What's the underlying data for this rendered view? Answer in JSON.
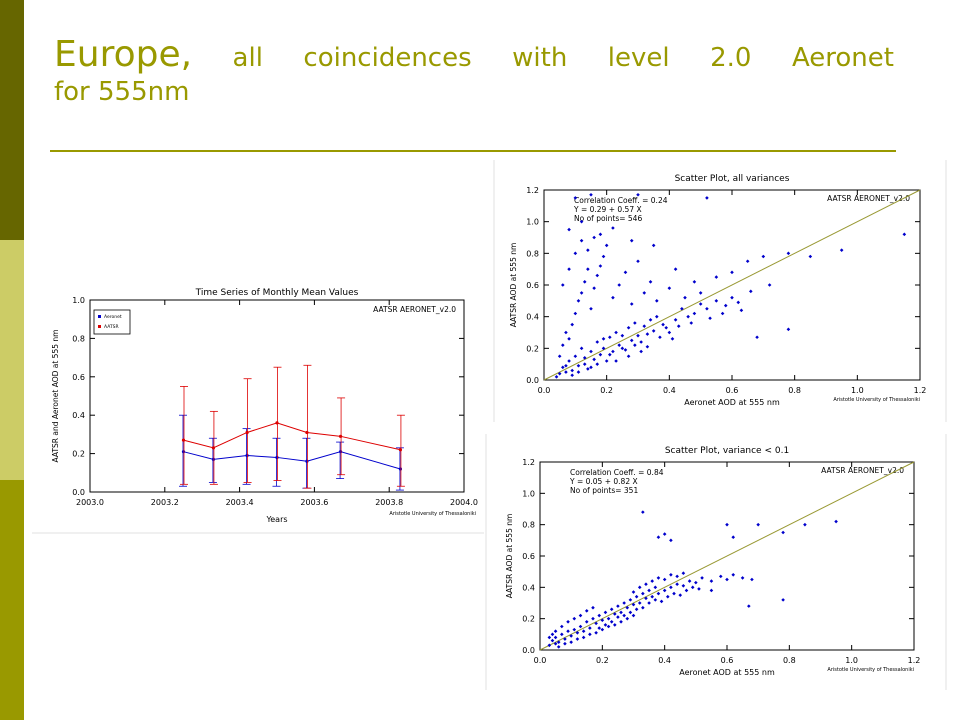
{
  "slide": {
    "title_line1_words": [
      "Europe,",
      "all",
      "coincidences",
      "with",
      "level",
      "2.0",
      "Aeronet"
    ],
    "title_line2": "for 555nm",
    "accent_color": "#999900",
    "sidebar_colors": [
      "#666600",
      "#cccc66",
      "#999900"
    ]
  },
  "chart_data": [
    {
      "type": "line",
      "title": "Time Series of Monthly Mean Values",
      "annotation": "AATSR AERONET_v2.0",
      "credit": "Aristotle University of Thessaloniki",
      "xlabel": "Years",
      "ylabel": "AATSR and Aeronet AOD at 555 nm",
      "xlim": [
        2003.0,
        2004.0
      ],
      "ylim": [
        0.0,
        1.0
      ],
      "xticks": [
        "2003.0",
        "2003.2",
        "2003.4",
        "2003.6",
        "2003.8",
        "2004.0"
      ],
      "yticks": [
        "0.0",
        "0.2",
        "0.4",
        "0.6",
        "0.8",
        "1.0"
      ],
      "legend_position": "top-left",
      "x": [
        2003.25,
        2003.33,
        2003.42,
        2003.5,
        2003.58,
        2003.67,
        2003.83
      ],
      "series": [
        {
          "name": "Aeronet",
          "color": "#0000cc",
          "values": [
            0.21,
            0.17,
            0.19,
            0.18,
            0.16,
            0.21,
            0.12
          ],
          "err_low": [
            0.03,
            0.05,
            0.04,
            0.03,
            0.02,
            0.07,
            0.01
          ],
          "err_high": [
            0.4,
            0.28,
            0.33,
            0.28,
            0.28,
            0.26,
            0.23
          ]
        },
        {
          "name": "AATSR",
          "color": "#dd0000",
          "values": [
            0.27,
            0.23,
            0.31,
            0.36,
            0.31,
            0.29,
            0.22
          ],
          "err_low": [
            0.04,
            0.04,
            0.05,
            0.06,
            0.02,
            0.09,
            0.03
          ],
          "err_high": [
            0.55,
            0.42,
            0.59,
            0.65,
            0.66,
            0.49,
            0.4
          ]
        }
      ]
    },
    {
      "type": "scatter",
      "title": "Scatter Plot, all variances",
      "annotation": "AATSR AERONET_v2.0",
      "credit": "Aristotle University of Thessaloniki",
      "stats": [
        "Correlation Coeff. = 0.24",
        "Y = 0.29 + 0.57 X",
        "No of points= 546"
      ],
      "xlabel": "Aeronet AOD at 555 nm",
      "ylabel": "AATSR AOD at 555 nm",
      "xlim": [
        0.0,
        1.2
      ],
      "ylim": [
        0.0,
        1.2
      ],
      "xticks": [
        "0.0",
        "0.2",
        "0.4",
        "0.6",
        "0.8",
        "1.0",
        "1.2"
      ],
      "yticks": [
        "0.0",
        "0.2",
        "0.4",
        "0.6",
        "0.8",
        "1.0",
        "1.2"
      ],
      "point_color": "#0000cc",
      "line_color": "#999933",
      "points": [
        [
          0.04,
          0.02
        ],
        [
          0.05,
          0.04
        ],
        [
          0.06,
          0.08
        ],
        [
          0.07,
          0.05
        ],
        [
          0.08,
          0.12
        ],
        [
          0.09,
          0.06
        ],
        [
          0.1,
          0.15
        ],
        [
          0.11,
          0.09
        ],
        [
          0.12,
          0.2
        ],
        [
          0.13,
          0.1
        ],
        [
          0.14,
          0.07
        ],
        [
          0.15,
          0.18
        ],
        [
          0.16,
          0.13
        ],
        [
          0.17,
          0.24
        ],
        [
          0.18,
          0.16
        ],
        [
          0.19,
          0.2
        ],
        [
          0.2,
          0.12
        ],
        [
          0.21,
          0.27
        ],
        [
          0.22,
          0.18
        ],
        [
          0.23,
          0.3
        ],
        [
          0.24,
          0.22
        ],
        [
          0.25,
          0.28
        ],
        [
          0.26,
          0.19
        ],
        [
          0.27,
          0.33
        ],
        [
          0.28,
          0.25
        ],
        [
          0.29,
          0.36
        ],
        [
          0.3,
          0.28
        ],
        [
          0.31,
          0.24
        ],
        [
          0.32,
          0.34
        ],
        [
          0.33,
          0.29
        ],
        [
          0.34,
          0.38
        ],
        [
          0.35,
          0.31
        ],
        [
          0.36,
          0.4
        ],
        [
          0.38,
          0.35
        ],
        [
          0.4,
          0.3
        ],
        [
          0.42,
          0.38
        ],
        [
          0.44,
          0.45
        ],
        [
          0.46,
          0.4
        ],
        [
          0.48,
          0.42
        ],
        [
          0.5,
          0.48
        ],
        [
          0.52,
          0.45
        ],
        [
          0.55,
          0.5
        ],
        [
          0.58,
          0.47
        ],
        [
          0.6,
          0.52
        ],
        [
          0.62,
          0.49
        ],
        [
          0.05,
          0.15
        ],
        [
          0.06,
          0.22
        ],
        [
          0.07,
          0.3
        ],
        [
          0.08,
          0.26
        ],
        [
          0.09,
          0.35
        ],
        [
          0.1,
          0.42
        ],
        [
          0.11,
          0.5
        ],
        [
          0.12,
          0.55
        ],
        [
          0.13,
          0.62
        ],
        [
          0.14,
          0.7
        ],
        [
          0.15,
          0.45
        ],
        [
          0.16,
          0.58
        ],
        [
          0.17,
          0.66
        ],
        [
          0.18,
          0.72
        ],
        [
          0.19,
          0.78
        ],
        [
          0.2,
          0.85
        ],
        [
          0.22,
          0.52
        ],
        [
          0.24,
          0.6
        ],
        [
          0.26,
          0.68
        ],
        [
          0.28,
          0.48
        ],
        [
          0.3,
          0.75
        ],
        [
          0.32,
          0.55
        ],
        [
          0.34,
          0.62
        ],
        [
          0.36,
          0.5
        ],
        [
          0.4,
          0.58
        ],
        [
          0.45,
          0.52
        ],
        [
          0.5,
          0.55
        ],
        [
          0.06,
          0.6
        ],
        [
          0.08,
          0.7
        ],
        [
          0.1,
          0.8
        ],
        [
          0.12,
          0.88
        ],
        [
          0.14,
          0.82
        ],
        [
          0.16,
          0.9
        ],
        [
          0.08,
          0.95
        ],
        [
          0.12,
          1.0
        ],
        [
          0.1,
          1.15
        ],
        [
          0.18,
          0.92
        ],
        [
          0.22,
          0.96
        ],
        [
          0.28,
          0.88
        ],
        [
          0.35,
          0.85
        ],
        [
          0.42,
          0.7
        ],
        [
          0.48,
          0.62
        ],
        [
          0.55,
          0.65
        ],
        [
          0.6,
          0.68
        ],
        [
          0.65,
          0.75
        ],
        [
          0.7,
          0.78
        ],
        [
          0.78,
          0.8
        ],
        [
          0.85,
          0.78
        ],
        [
          0.95,
          0.82
        ],
        [
          1.15,
          0.92
        ],
        [
          0.78,
          0.32
        ],
        [
          0.68,
          0.27
        ],
        [
          0.52,
          1.15
        ],
        [
          0.3,
          1.17
        ],
        [
          0.15,
          1.17
        ],
        [
          0.07,
          0.09
        ],
        [
          0.09,
          0.03
        ],
        [
          0.11,
          0.05
        ],
        [
          0.13,
          0.14
        ],
        [
          0.15,
          0.08
        ],
        [
          0.17,
          0.1
        ],
        [
          0.19,
          0.26
        ],
        [
          0.21,
          0.16
        ],
        [
          0.23,
          0.12
        ],
        [
          0.25,
          0.2
        ],
        [
          0.27,
          0.15
        ],
        [
          0.29,
          0.22
        ],
        [
          0.31,
          0.18
        ],
        [
          0.33,
          0.21
        ],
        [
          0.37,
          0.27
        ],
        [
          0.39,
          0.33
        ],
        [
          0.41,
          0.26
        ],
        [
          0.43,
          0.34
        ],
        [
          0.47,
          0.36
        ],
        [
          0.53,
          0.39
        ],
        [
          0.57,
          0.42
        ],
        [
          0.63,
          0.44
        ],
        [
          0.66,
          0.56
        ],
        [
          0.72,
          0.6
        ]
      ]
    },
    {
      "type": "scatter",
      "title": "Scatter Plot, variance < 0.1",
      "annotation": "AATSR AERONET_v2.0",
      "credit": "Aristotle University of Thessaloniki",
      "stats": [
        "Correlation Coeff. = 0.84",
        "Y = 0.05 + 0.82 X",
        "No of points= 351"
      ],
      "xlabel": "Aeronet AOD at 555 nm",
      "ylabel": "AATSR AOD at 555 nm",
      "xlim": [
        0.0,
        1.2
      ],
      "ylim": [
        0.0,
        1.2
      ],
      "xticks": [
        "0.0",
        "0.2",
        "0.4",
        "0.6",
        "0.8",
        "1.0",
        "1.2"
      ],
      "yticks": [
        "0.0",
        "0.2",
        "0.4",
        "0.6",
        "0.8",
        "1.0",
        "1.2"
      ],
      "point_color": "#0000cc",
      "line_color": "#999933",
      "points": [
        [
          0.03,
          0.03
        ],
        [
          0.04,
          0.06
        ],
        [
          0.05,
          0.08
        ],
        [
          0.06,
          0.05
        ],
        [
          0.07,
          0.1
        ],
        [
          0.08,
          0.07
        ],
        [
          0.09,
          0.12
        ],
        [
          0.1,
          0.09
        ],
        [
          0.11,
          0.13
        ],
        [
          0.12,
          0.11
        ],
        [
          0.13,
          0.15
        ],
        [
          0.14,
          0.12
        ],
        [
          0.15,
          0.18
        ],
        [
          0.16,
          0.14
        ],
        [
          0.17,
          0.2
        ],
        [
          0.18,
          0.17
        ],
        [
          0.19,
          0.22
        ],
        [
          0.2,
          0.19
        ],
        [
          0.21,
          0.24
        ],
        [
          0.22,
          0.2
        ],
        [
          0.23,
          0.26
        ],
        [
          0.24,
          0.23
        ],
        [
          0.25,
          0.28
        ],
        [
          0.26,
          0.24
        ],
        [
          0.27,
          0.3
        ],
        [
          0.28,
          0.27
        ],
        [
          0.29,
          0.32
        ],
        [
          0.3,
          0.29
        ],
        [
          0.31,
          0.34
        ],
        [
          0.32,
          0.3
        ],
        [
          0.33,
          0.36
        ],
        [
          0.34,
          0.33
        ],
        [
          0.35,
          0.38
        ],
        [
          0.36,
          0.34
        ],
        [
          0.37,
          0.4
        ],
        [
          0.38,
          0.36
        ],
        [
          0.4,
          0.38
        ],
        [
          0.42,
          0.4
        ],
        [
          0.44,
          0.42
        ],
        [
          0.46,
          0.41
        ],
        [
          0.48,
          0.44
        ],
        [
          0.5,
          0.43
        ],
        [
          0.52,
          0.46
        ],
        [
          0.55,
          0.44
        ],
        [
          0.58,
          0.47
        ],
        [
          0.6,
          0.45
        ],
        [
          0.62,
          0.48
        ],
        [
          0.65,
          0.46
        ],
        [
          0.68,
          0.45
        ],
        [
          0.05,
          0.12
        ],
        [
          0.07,
          0.15
        ],
        [
          0.09,
          0.18
        ],
        [
          0.11,
          0.2
        ],
        [
          0.13,
          0.22
        ],
        [
          0.15,
          0.25
        ],
        [
          0.17,
          0.27
        ],
        [
          0.19,
          0.14
        ],
        [
          0.21,
          0.16
        ],
        [
          0.23,
          0.18
        ],
        [
          0.25,
          0.21
        ],
        [
          0.27,
          0.22
        ],
        [
          0.29,
          0.24
        ],
        [
          0.31,
          0.26
        ],
        [
          0.33,
          0.27
        ],
        [
          0.35,
          0.3
        ],
        [
          0.37,
          0.32
        ],
        [
          0.39,
          0.31
        ],
        [
          0.41,
          0.34
        ],
        [
          0.43,
          0.36
        ],
        [
          0.45,
          0.35
        ],
        [
          0.47,
          0.38
        ],
        [
          0.49,
          0.4
        ],
        [
          0.51,
          0.39
        ],
        [
          0.3,
          0.37
        ],
        [
          0.32,
          0.4
        ],
        [
          0.34,
          0.42
        ],
        [
          0.36,
          0.44
        ],
        [
          0.38,
          0.46
        ],
        [
          0.4,
          0.45
        ],
        [
          0.42,
          0.48
        ],
        [
          0.44,
          0.47
        ],
        [
          0.46,
          0.49
        ],
        [
          0.06,
          0.02
        ],
        [
          0.08,
          0.04
        ],
        [
          0.1,
          0.05
        ],
        [
          0.12,
          0.07
        ],
        [
          0.14,
          0.08
        ],
        [
          0.16,
          0.1
        ],
        [
          0.18,
          0.11
        ],
        [
          0.2,
          0.13
        ],
        [
          0.22,
          0.15
        ],
        [
          0.24,
          0.16
        ],
        [
          0.26,
          0.18
        ],
        [
          0.28,
          0.2
        ],
        [
          0.3,
          0.22
        ],
        [
          0.33,
          0.88
        ],
        [
          0.38,
          0.72
        ],
        [
          0.4,
          0.74
        ],
        [
          0.42,
          0.7
        ],
        [
          0.6,
          0.8
        ],
        [
          0.62,
          0.72
        ],
        [
          0.7,
          0.8
        ],
        [
          0.78,
          0.75
        ],
        [
          0.85,
          0.8
        ],
        [
          0.95,
          0.82
        ],
        [
          0.67,
          0.28
        ],
        [
          0.78,
          0.32
        ],
        [
          0.55,
          0.38
        ],
        [
          0.03,
          0.08
        ],
        [
          0.04,
          0.1
        ],
        [
          0.05,
          0.04
        ]
      ]
    }
  ]
}
